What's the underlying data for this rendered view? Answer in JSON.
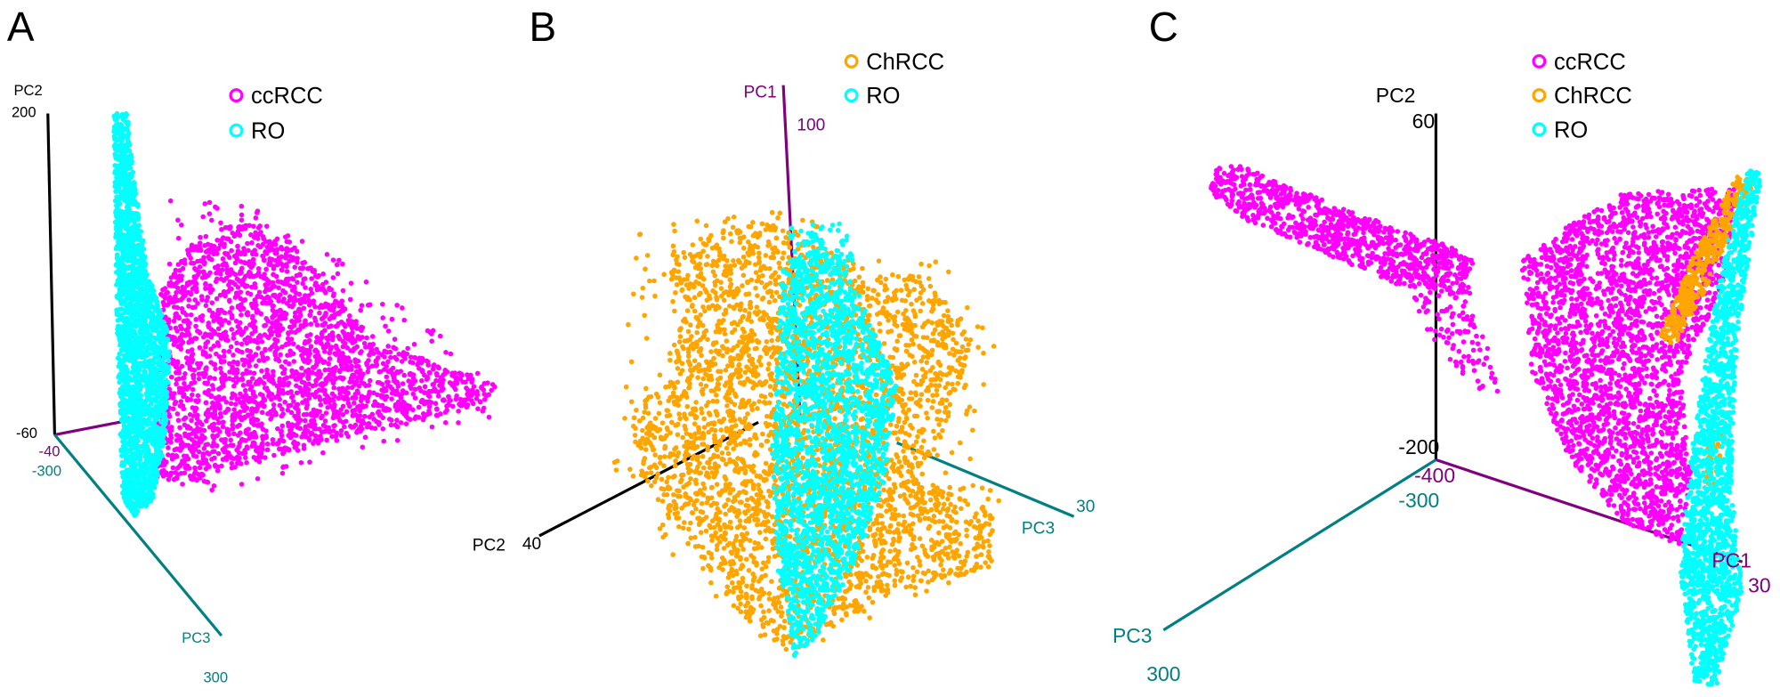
{
  "colors": {
    "ccRCC": "#ff00ff",
    "ChRCC": "#ffa500",
    "RO": "#00ffff",
    "pc1_axis": "#800080",
    "pc2_axis": "#000000",
    "pc3_axis": "#008080"
  },
  "chart_data": [
    {
      "type": "scatter",
      "panel_label": "A",
      "projection": "3d",
      "axes": {
        "pc1": {
          "min_label": "-40"
        },
        "pc2": {
          "label": "PC2",
          "min_label": "-60",
          "max_label": "200"
        },
        "pc3": {
          "label": "PC3",
          "min_label": "-300",
          "max_label": "300"
        }
      },
      "legend": {
        "placement": "top-right",
        "entries": [
          "ccRCC",
          "RO"
        ]
      },
      "series": [
        {
          "name": "ccRCC",
          "color": "#ff00ff"
        },
        {
          "name": "RO",
          "color": "#00ffff"
        }
      ]
    },
    {
      "type": "scatter",
      "panel_label": "B",
      "projection": "3d",
      "axes": {
        "pc1": {
          "label": "PC1",
          "max_label": "100"
        },
        "pc2": {
          "label": "PC2",
          "max_label": "40"
        },
        "pc3": {
          "label": "PC3",
          "max_label": "30"
        }
      },
      "legend": {
        "placement": "top-right",
        "entries": [
          "ChRCC",
          "RO"
        ]
      },
      "series": [
        {
          "name": "ChRCC",
          "color": "#ffa500"
        },
        {
          "name": "RO",
          "color": "#00ffff"
        }
      ]
    },
    {
      "type": "scatter",
      "panel_label": "C",
      "projection": "3d",
      "axes": {
        "pc1": {
          "label": "PC1",
          "min_label": "-400",
          "max_label": "30"
        },
        "pc2": {
          "label": "PC2",
          "min_label": "-200",
          "max_label": "60"
        },
        "pc3": {
          "label": "PC3",
          "min_label": "-300",
          "max_label": "300"
        }
      },
      "legend": {
        "placement": "top-center",
        "entries": [
          "ccRCC",
          "ChRCC",
          "RO"
        ]
      },
      "series": [
        {
          "name": "ccRCC",
          "color": "#ff00ff"
        },
        {
          "name": "ChRCC",
          "color": "#ffa500"
        },
        {
          "name": "RO",
          "color": "#00ffff"
        }
      ]
    }
  ]
}
